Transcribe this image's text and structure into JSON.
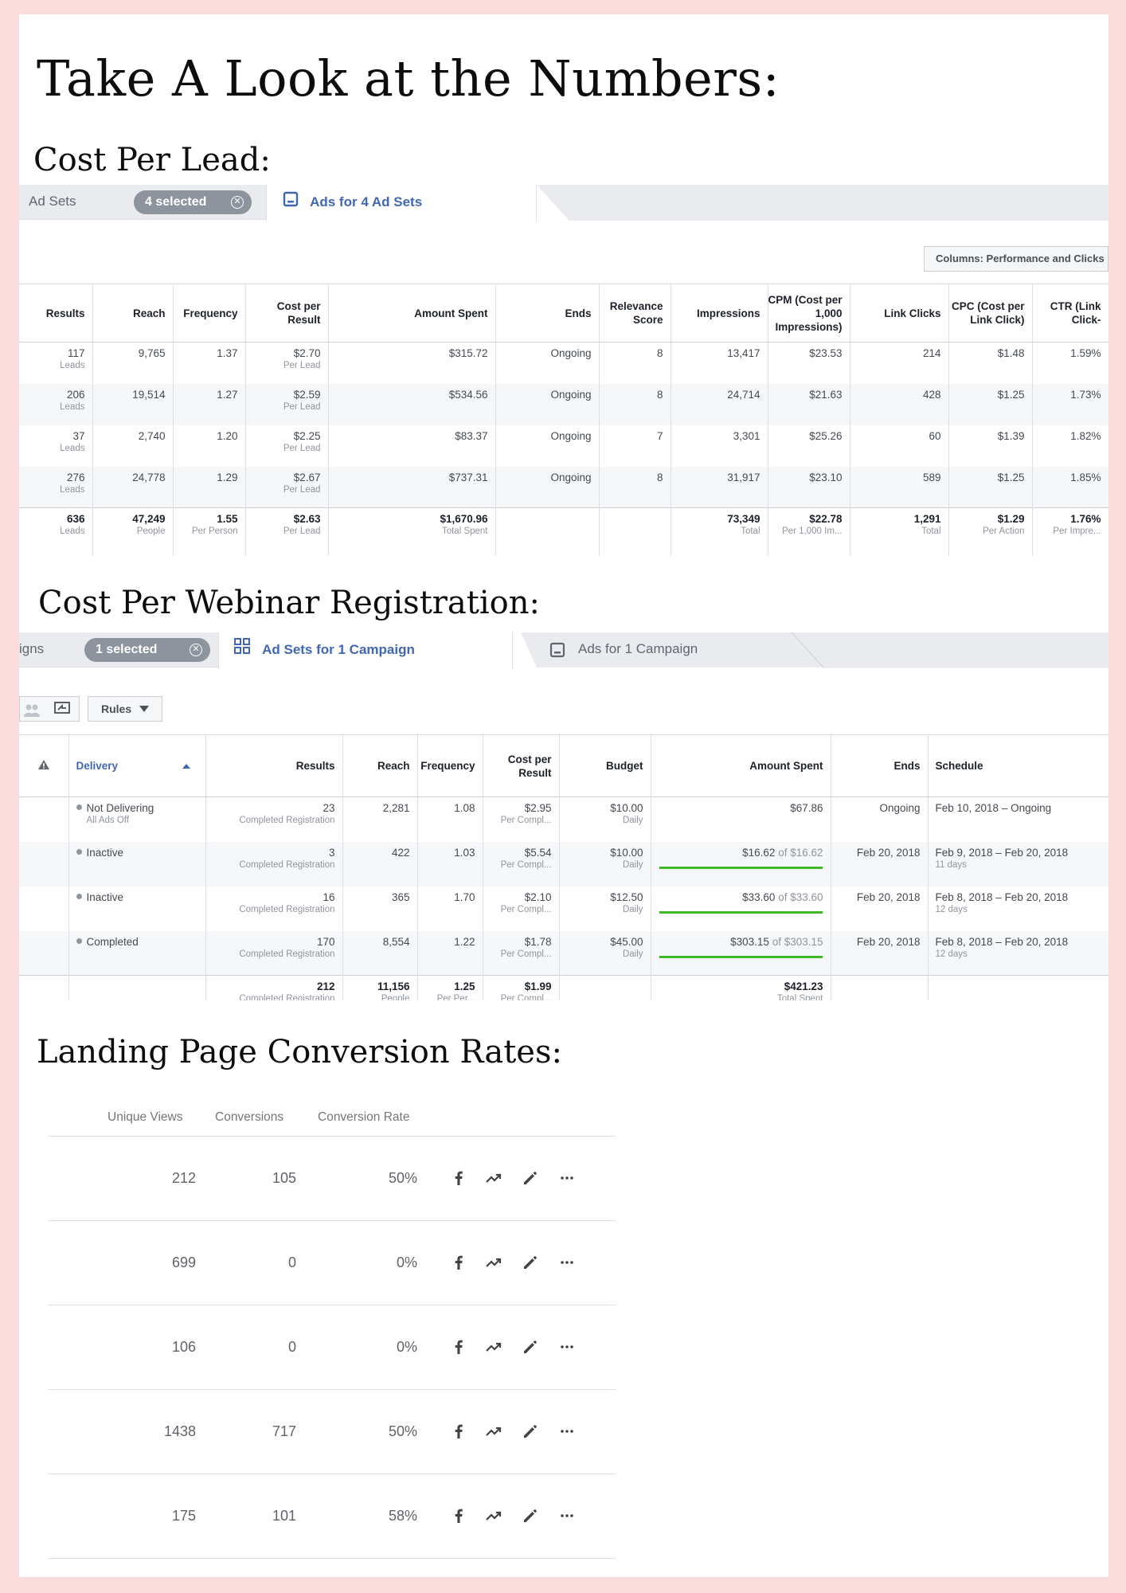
{
  "title": "Take A Look at the Numbers:",
  "section1": {
    "heading": "Cost Per Lead:",
    "tabs": {
      "ad_sets": "Ad Sets",
      "selected": "4 selected",
      "active": "Ads for 4 Ad Sets"
    },
    "columns_button": "Columns: Performance and Clicks",
    "headers": [
      "Results",
      "Reach",
      "Frequency",
      "Cost per Result",
      "Amount Spent",
      "Ends",
      "Relevance Score",
      "Impressions",
      "CPM (Cost per 1,000 Impressions)",
      "Link Clicks",
      "CPC (Cost per Link Click)",
      "CTR (Link Click-"
    ],
    "rows": [
      {
        "results": "117",
        "results_sub": "Leads",
        "reach": "9,765",
        "frequency": "1.37",
        "cost": "$2.70",
        "cost_sub": "Per Lead",
        "spent": "$315.72",
        "ends": "Ongoing",
        "relevance": "8",
        "impressions": "13,417",
        "cpm": "$23.53",
        "clicks": "214",
        "cpc": "$1.48",
        "ctr": "1.59%"
      },
      {
        "results": "206",
        "results_sub": "Leads",
        "reach": "19,514",
        "frequency": "1.27",
        "cost": "$2.59",
        "cost_sub": "Per Lead",
        "spent": "$534.56",
        "ends": "Ongoing",
        "relevance": "8",
        "impressions": "24,714",
        "cpm": "$21.63",
        "clicks": "428",
        "cpc": "$1.25",
        "ctr": "1.73%"
      },
      {
        "results": "37",
        "results_sub": "Leads",
        "reach": "2,740",
        "frequency": "1.20",
        "cost": "$2.25",
        "cost_sub": "Per Lead",
        "spent": "$83.37",
        "ends": "Ongoing",
        "relevance": "7",
        "impressions": "3,301",
        "cpm": "$25.26",
        "clicks": "60",
        "cpc": "$1.39",
        "ctr": "1.82%"
      },
      {
        "results": "276",
        "results_sub": "Leads",
        "reach": "24,778",
        "frequency": "1.29",
        "cost": "$2.67",
        "cost_sub": "Per Lead",
        "spent": "$737.31",
        "ends": "Ongoing",
        "relevance": "8",
        "impressions": "31,917",
        "cpm": "$23.10",
        "clicks": "589",
        "cpc": "$1.25",
        "ctr": "1.85%"
      }
    ],
    "total": {
      "results": "636",
      "results_sub": "Leads",
      "reach": "47,249",
      "reach_sub": "People",
      "frequency": "1.55",
      "frequency_sub": "Per Person",
      "cost": "$2.63",
      "cost_sub": "Per Lead",
      "spent": "$1,670.96",
      "spent_sub": "Total Spent",
      "impressions": "73,349",
      "impressions_sub": "Total",
      "cpm": "$22.78",
      "cpm_sub": "Per 1,000 Im...",
      "clicks": "1,291",
      "clicks_sub": "Total",
      "cpc": "$1.29",
      "cpc_sub": "Per Action",
      "ctr": "1.76%",
      "ctr_sub": "Per Impre..."
    }
  },
  "section2": {
    "heading": "Cost Per Webinar Registration:",
    "tabs": {
      "campaigns": "igns",
      "selected": "1 selected",
      "active": "Ad Sets for 1 Campaign",
      "inactive": "Ads for 1 Campaign"
    },
    "rules_button": "Rules",
    "headers": [
      "Delivery",
      "Results",
      "Reach",
      "Frequency",
      "Cost per Result",
      "Budget",
      "Amount Spent",
      "Ends",
      "Schedule"
    ],
    "rows": [
      {
        "delivery": "Not Delivering",
        "delivery_sub": "All Ads Off",
        "results": "23",
        "results_sub": "Completed Registration",
        "reach": "2,281",
        "frequency": "1.08",
        "cost": "$2.95",
        "cost_sub": "Per Compl...",
        "budget": "$10.00",
        "budget_sub": "Daily",
        "spent": "$67.86",
        "spent_of": "",
        "progress": 0,
        "ends": "Ongoing",
        "schedule": "Feb 10, 2018 – Ongoing",
        "schedule_sub": ""
      },
      {
        "delivery": "Inactive",
        "delivery_sub": "",
        "results": "3",
        "results_sub": "Completed Registration",
        "reach": "422",
        "frequency": "1.03",
        "cost": "$5.54",
        "cost_sub": "Per Compl...",
        "budget": "$10.00",
        "budget_sub": "Daily",
        "spent": "$16.62",
        "spent_of": " of $16.62",
        "progress": 1,
        "ends": "Feb 20, 2018",
        "schedule": "Feb 9, 2018 – Feb 20, 2018",
        "schedule_sub": "11 days"
      },
      {
        "delivery": "Inactive",
        "delivery_sub": "",
        "results": "16",
        "results_sub": "Completed Registration",
        "reach": "365",
        "frequency": "1.70",
        "cost": "$2.10",
        "cost_sub": "Per Compl...",
        "budget": "$12.50",
        "budget_sub": "Daily",
        "spent": "$33.60",
        "spent_of": " of $33.60",
        "progress": 1,
        "ends": "Feb 20, 2018",
        "schedule": "Feb 8, 2018 – Feb 20, 2018",
        "schedule_sub": "12 days"
      },
      {
        "delivery": "Completed",
        "delivery_sub": "",
        "results": "170",
        "results_sub": "Completed Registration",
        "reach": "8,554",
        "frequency": "1.22",
        "cost": "$1.78",
        "cost_sub": "Per Compl...",
        "budget": "$45.00",
        "budget_sub": "Daily",
        "spent": "$303.15",
        "spent_of": " of $303.15",
        "progress": 1,
        "ends": "Feb 20, 2018",
        "schedule": "Feb 8, 2018 – Feb 20, 2018",
        "schedule_sub": "12 days"
      }
    ],
    "total": {
      "results": "212",
      "results_sub": "Completed Registration",
      "reach": "11,156",
      "reach_sub": "People",
      "frequency": "1.25",
      "frequency_sub": "Per Per...",
      "cost": "$1.99",
      "cost_sub": "Per Compl...",
      "spent": "$421.23",
      "spent_sub": "Total Spent"
    }
  },
  "section3": {
    "heading": "Landing Page Conversion Rates:",
    "headers": [
      "Unique Views",
      "Conversions",
      "Conversion Rate"
    ],
    "rows": [
      {
        "views": "212",
        "conversions": "105",
        "rate": "50%"
      },
      {
        "views": "699",
        "conversions": "0",
        "rate": "0%"
      },
      {
        "views": "106",
        "conversions": "0",
        "rate": "0%"
      },
      {
        "views": "1438",
        "conversions": "717",
        "rate": "50%"
      },
      {
        "views": "175",
        "conversions": "101",
        "rate": "58%"
      }
    ],
    "row_icons": [
      "facebook-icon",
      "trend-icon",
      "edit-icon",
      "more-icon"
    ]
  },
  "colors": {
    "page_border": "#fadcdc",
    "fb_blue": "#4267b2",
    "progress_green": "#42b72a"
  }
}
